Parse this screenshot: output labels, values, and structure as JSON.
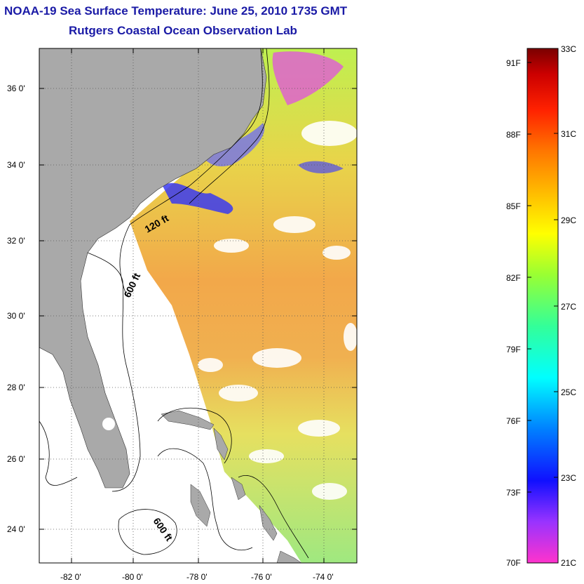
{
  "header": {
    "title": "NOAA-19 Sea Surface Temperature:  June 25, 2010 1735 GMT",
    "subtitle": "Rutgers Coastal Ocean Observation Lab"
  },
  "map": {
    "lon_range": [
      -83,
      -73
    ],
    "lat_range": [
      23,
      37
    ],
    "lon_ticks": [
      "-82 0'",
      "-80 0'",
      "-78 0'",
      "-76 0'",
      "-74 0'"
    ],
    "lat_ticks": [
      "36 0'",
      "34 0'",
      "32 0'",
      "30 0'",
      "28 0'",
      "26 0'",
      "24 0'"
    ],
    "contour_labels": [
      "120 ft",
      "600 ft",
      "600 ft"
    ],
    "land_color": "#a9a9a9",
    "no_data_color": "#ffffff",
    "grid": "dotted"
  },
  "colorbar": {
    "celsius_labels": [
      "33C",
      "31C",
      "29C",
      "27C",
      "25C",
      "23C",
      "21C"
    ],
    "fahrenheit_labels": [
      "91F",
      "88F",
      "85F",
      "82F",
      "79F",
      "76F",
      "73F",
      "70F"
    ],
    "range_c": [
      21,
      33
    ],
    "stops": [
      "#ff33cc",
      "#9933ff",
      "#1010ff",
      "#0080ff",
      "#00ffff",
      "#33ff99",
      "#99ff33",
      "#ffff00",
      "#ffbb00",
      "#ff7700",
      "#ff2200",
      "#cc0000",
      "#7a0000"
    ]
  }
}
